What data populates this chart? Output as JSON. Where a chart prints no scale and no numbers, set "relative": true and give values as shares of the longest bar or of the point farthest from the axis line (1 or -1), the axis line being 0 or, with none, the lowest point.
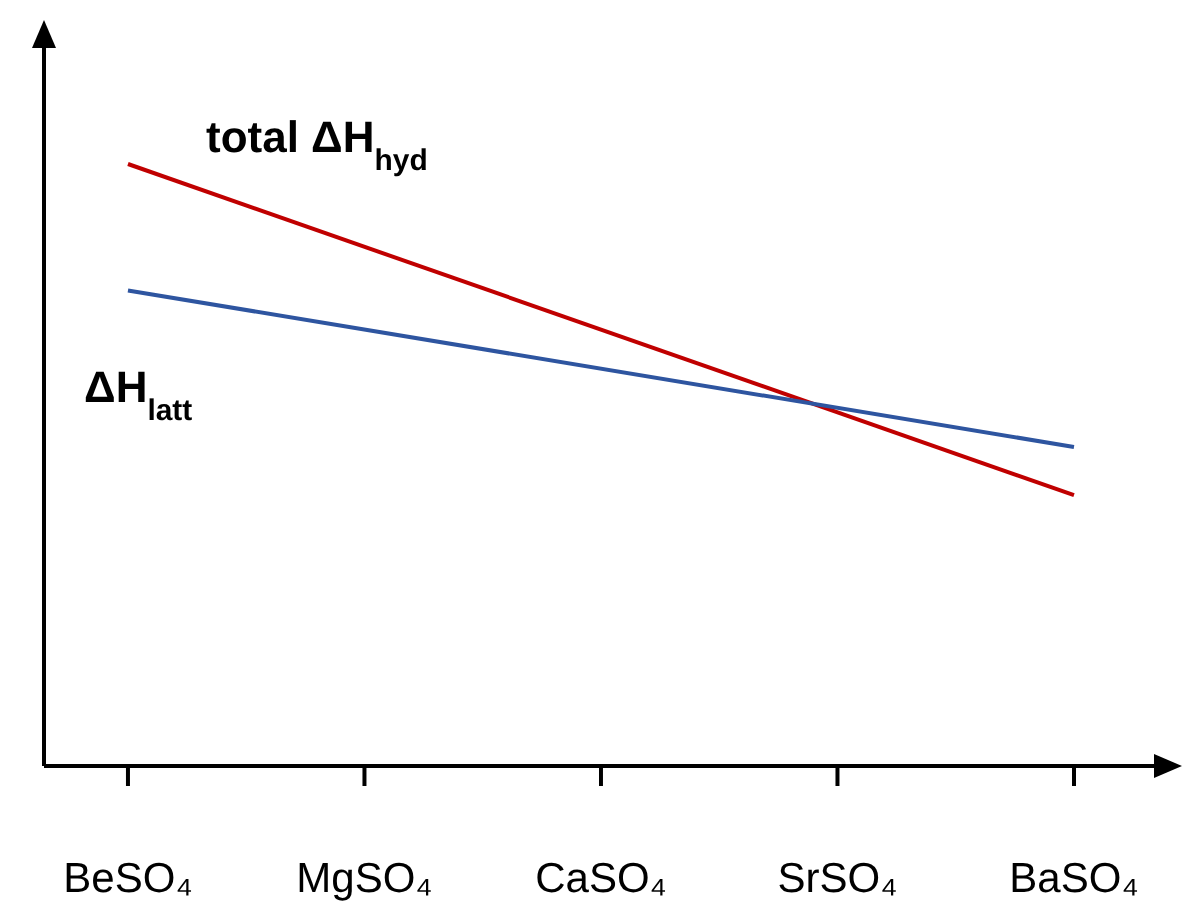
{
  "chart_data": {
    "type": "line",
    "relative": true,
    "categories": [
      "BeSO₄",
      "MgSO₄",
      "CaSO₄",
      "SrSO₄",
      "BaSO₄"
    ],
    "legend": false,
    "grid": false,
    "marker": "none",
    "tick_labels": "x",
    "series": [
      {
        "name": "total ΔH$_{hyd}$",
        "color": "#c00000",
        "values": [
          1,
          null,
          null,
          null,
          0.45
        ]
      },
      {
        "name": "ΔH$_{latt}$",
        "color": "#2e55a0",
        "values": [
          0.79,
          null,
          null,
          null,
          0.53
        ]
      }
    ]
  }
}
